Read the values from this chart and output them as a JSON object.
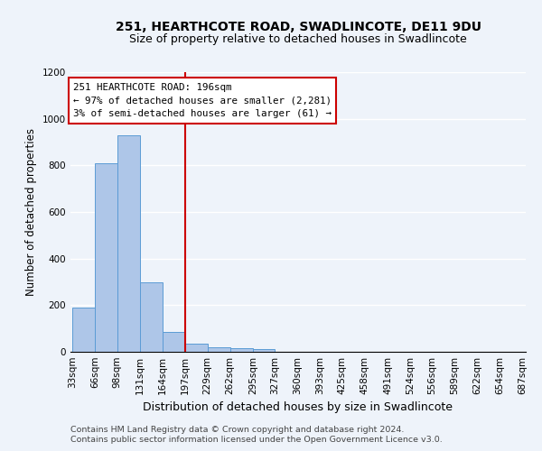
{
  "title1": "251, HEARTHCOTE ROAD, SWADLINCOTE, DE11 9DU",
  "title2": "Size of property relative to detached houses in Swadlincote",
  "xlabel": "Distribution of detached houses by size in Swadlincote",
  "ylabel": "Number of detached properties",
  "footnote1": "Contains HM Land Registry data © Crown copyright and database right 2024.",
  "footnote2": "Contains public sector information licensed under the Open Government Licence v3.0.",
  "bar_edges": [
    33,
    66,
    98,
    131,
    164,
    197,
    229,
    262,
    295,
    327,
    360,
    393,
    425,
    458,
    491,
    524,
    556,
    589,
    622,
    654,
    687
  ],
  "bar_heights": [
    190,
    810,
    930,
    300,
    85,
    35,
    20,
    15,
    10,
    0,
    0,
    0,
    0,
    0,
    0,
    0,
    0,
    0,
    0,
    0
  ],
  "bar_color": "#aec6e8",
  "bar_edge_color": "#5b9bd5",
  "vline_x": 197,
  "vline_color": "#cc0000",
  "annotation_line1": "251 HEARTHCOTE ROAD: 196sqm",
  "annotation_line2": "← 97% of detached houses are smaller (2,281)",
  "annotation_line3": "3% of semi-detached houses are larger (61) →",
  "annotation_box_color": "#ffffff",
  "annotation_box_edge": "#cc0000",
  "ylim": [
    0,
    1200
  ],
  "yticks": [
    0,
    200,
    400,
    600,
    800,
    1000,
    1200
  ],
  "bg_color": "#eef3fa",
  "plot_bg_color": "#eef3fa",
  "grid_color": "#ffffff",
  "title1_fontsize": 10,
  "title2_fontsize": 9,
  "xlabel_fontsize": 9,
  "ylabel_fontsize": 8.5,
  "tick_fontsize": 7.5,
  "footnote_fontsize": 6.8,
  "annot_fontsize": 7.8
}
